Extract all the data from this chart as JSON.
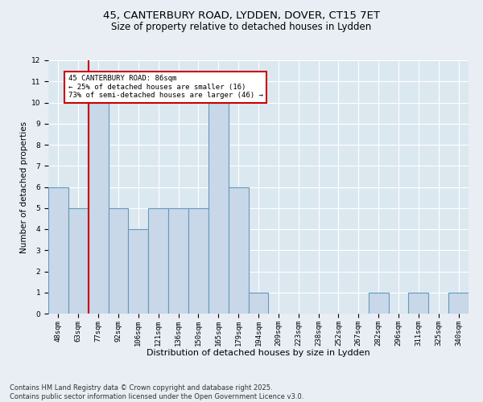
{
  "title_line1": "45, CANTERBURY ROAD, LYDDEN, DOVER, CT15 7ET",
  "title_line2": "Size of property relative to detached houses in Lydden",
  "xlabel": "Distribution of detached houses by size in Lydden",
  "ylabel": "Number of detached properties",
  "categories": [
    "48sqm",
    "63sqm",
    "77sqm",
    "92sqm",
    "106sqm",
    "121sqm",
    "136sqm",
    "150sqm",
    "165sqm",
    "179sqm",
    "194sqm",
    "209sqm",
    "223sqm",
    "238sqm",
    "252sqm",
    "267sqm",
    "282sqm",
    "296sqm",
    "311sqm",
    "325sqm",
    "340sqm"
  ],
  "values": [
    6,
    5,
    10,
    5,
    4,
    5,
    5,
    5,
    10,
    6,
    1,
    0,
    0,
    0,
    0,
    0,
    1,
    0,
    1,
    0,
    1
  ],
  "bar_color": "#c8d8e8",
  "bar_edge_color": "#6699bb",
  "bar_edge_width": 0.8,
  "ylim": [
    0,
    12
  ],
  "yticks": [
    0,
    1,
    2,
    3,
    4,
    5,
    6,
    7,
    8,
    9,
    10,
    11,
    12
  ],
  "red_line_index": 2,
  "red_line_color": "#cc0000",
  "annotation_box_color": "#cc0000",
  "annotation_text_line1": "45 CANTERBURY ROAD: 86sqm",
  "annotation_text_line2": "← 25% of detached houses are smaller (16)",
  "annotation_text_line3": "73% of semi-detached houses are larger (46) →",
  "annotation_fontsize": 6.5,
  "title_fontsize": 9.5,
  "subtitle_fontsize": 8.5,
  "xlabel_fontsize": 8,
  "ylabel_fontsize": 7.5,
  "tick_fontsize": 6.5,
  "footer_line1": "Contains HM Land Registry data © Crown copyright and database right 2025.",
  "footer_line2": "Contains public sector information licensed under the Open Government Licence v3.0.",
  "footer_fontsize": 6,
  "background_color": "#e8eef4",
  "plot_bg_color": "#dce8f0",
  "grid_color": "#ffffff"
}
